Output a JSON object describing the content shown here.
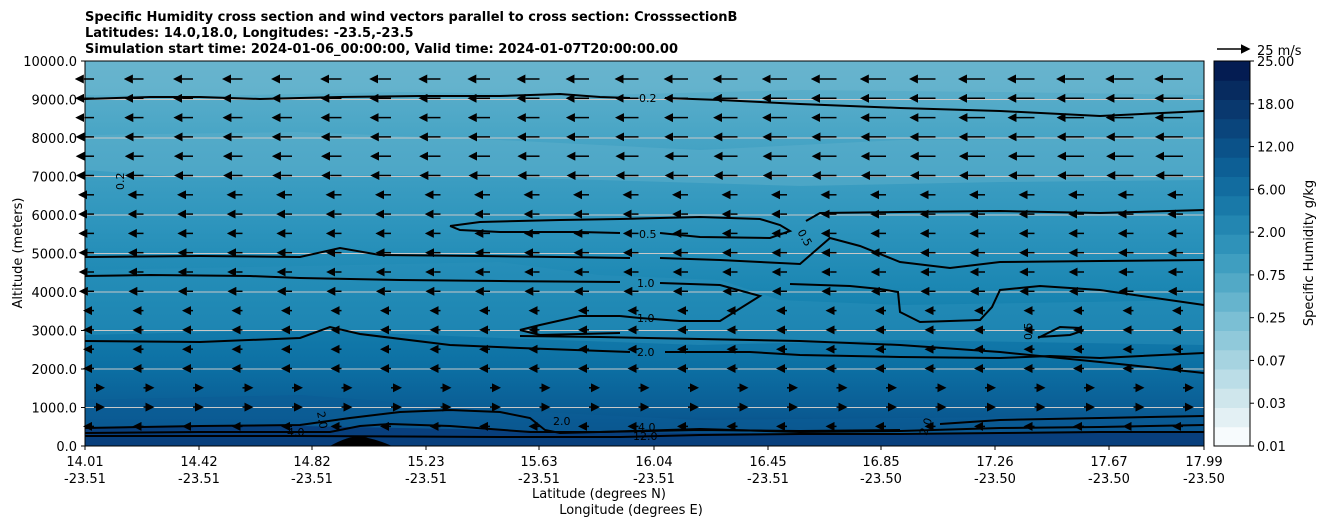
{
  "chart_data": {
    "type": "contourf",
    "title_lines": [
      "Specific Humidity cross section and wind vectors parallel to cross section: CrosssectionB",
      "Latitudes: 14.0,18.0, Longitudes: -23.5,-23.5",
      "Simulation start time: 2024-01-06_00:00:00, Valid time: 2024-01-07T20:00:00.00"
    ],
    "xlabel_lat": "Latitude (degrees N)",
    "xlabel_lon": "Longitude (degrees E)",
    "ylabel": "Altitude (meters)",
    "x_range": [
      14.01,
      17.99
    ],
    "y_range": [
      0,
      10000
    ],
    "x_ticks": [
      {
        "lat": "14.01",
        "lon": "-23.51"
      },
      {
        "lat": "14.42",
        "lon": "-23.51"
      },
      {
        "lat": "14.82",
        "lon": "-23.51"
      },
      {
        "lat": "15.23",
        "lon": "-23.51"
      },
      {
        "lat": "15.63",
        "lon": "-23.51"
      },
      {
        "lat": "16.04",
        "lon": "-23.51"
      },
      {
        "lat": "16.45",
        "lon": "-23.51"
      },
      {
        "lat": "16.85",
        "lon": "-23.50"
      },
      {
        "lat": "17.26",
        "lon": "-23.50"
      },
      {
        "lat": "17.67",
        "lon": "-23.50"
      },
      {
        "lat": "17.99",
        "lon": "-23.50"
      }
    ],
    "y_ticks": [
      "0.0",
      "1000.0",
      "2000.0",
      "3000.0",
      "4000.0",
      "5000.0",
      "6000.0",
      "7000.0",
      "8000.0",
      "9000.0",
      "10000.0"
    ],
    "y_tick_values": [
      0,
      1000,
      2000,
      3000,
      4000,
      5000,
      6000,
      7000,
      8000,
      9000,
      10000
    ],
    "colorbar": {
      "label": "Specific Humidity g/kg",
      "tick_labels": [
        "0.01",
        "0.03",
        "0.07",
        "0.25",
        "0.75",
        "2.00",
        "6.00",
        "12.00",
        "18.00",
        "25.00"
      ],
      "colors": [
        "#f7fbfd",
        "#e3f0f4",
        "#cfe6ec",
        "#bbdde7",
        "#a6d3e0",
        "#90c9da",
        "#7bbfd4",
        "#66b4cd",
        "#52a9c6",
        "#3f9ec0",
        "#2f92b9",
        "#2386b1",
        "#1979a8",
        "#126c9f",
        "#0d5f95",
        "#0b5289",
        "#0a457c",
        "#09386e",
        "#072b5f",
        "#041c52"
      ]
    },
    "wind_key": {
      "label": "25 m/s"
    },
    "contours": [
      {
        "level": "0.2",
        "labels": [
          "0.2",
          "0.2"
        ]
      },
      {
        "level": "0.5",
        "labels": [
          "0.5",
          "0.5",
          "0.5"
        ]
      },
      {
        "level": "1.0",
        "labels": [
          "1.0",
          "1.0"
        ]
      },
      {
        "level": "2.0",
        "labels": [
          "2.0",
          "2.0",
          "2.0",
          "2.0"
        ]
      },
      {
        "level": "4.0",
        "labels": [
          "4.0",
          "4.0"
        ]
      },
      {
        "level": "12.0",
        "labels": [
          "12.0"
        ]
      }
    ]
  }
}
